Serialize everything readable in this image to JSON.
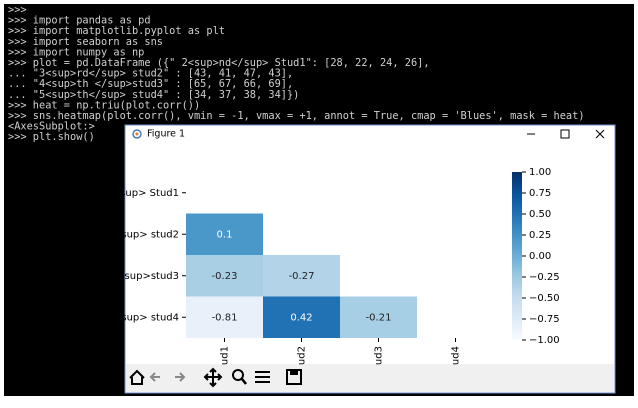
{
  "terminal": {
    "lines": [
      ">>>",
      ">>> import pandas as pd",
      ">>> import matplotlib.pyplot as plt",
      ">>> import seaborn as sns",
      ">>> import numpy as np",
      ">>> plot = pd.DataFrame ({\" 2<sup>nd</sup> Stud1\": [28, 22, 24, 26],",
      "... \"3<sup>rd</sup> stud2\" : [43, 41, 47, 43],",
      "... \"4<sup>th </sup>stud3\" : [65, 67, 66, 69],",
      "... \"5<sup>th</sup> stud4\" : [34, 37, 38, 34]})",
      ">>> heat = np.triu(plot.corr())",
      ">>> sns.heatmap(plot.corr(), vmin = -1, vmax = +1, annot = True, cmap = 'Blues', mask = heat)",
      "<AxesSubplot:>",
      ">>> plt.show()"
    ]
  },
  "window": {
    "title": "Figure 1"
  },
  "chart_data": {
    "type": "heatmap",
    "rows": [
      "sup> Stud1",
      "sup> stud2",
      "sup>stud3",
      "sup> stud4"
    ],
    "columns": [
      "ud1",
      "ud2",
      "ud3",
      "ud4"
    ],
    "values": [
      [
        null,
        null,
        null,
        null
      ],
      [
        0.1,
        null,
        null,
        null
      ],
      [
        -0.23,
        -0.27,
        null,
        null
      ],
      [
        -0.81,
        0.42,
        -0.21,
        null
      ]
    ],
    "colors": [
      [
        null,
        null,
        null,
        null
      ],
      [
        "#4a98c9",
        null,
        null,
        null
      ],
      [
        "#a9cfe5",
        "#b3d3e8",
        null,
        null
      ],
      [
        "#e8f1fa",
        "#2171b5",
        "#a6cee4",
        null
      ]
    ],
    "colorbar": {
      "lim": [
        -1,
        1
      ],
      "ticks": [
        {
          "value": 1,
          "label": "1.00"
        },
        {
          "value": 0.75,
          "label": "0.75"
        },
        {
          "value": 0.5,
          "label": "0.50"
        },
        {
          "value": 0.25,
          "label": "0.25"
        },
        {
          "value": 0,
          "label": "0.00"
        },
        {
          "value": -0.25,
          "label": "−0.25"
        },
        {
          "value": -0.5,
          "label": "−0.50"
        },
        {
          "value": -0.75,
          "label": "−0.75"
        },
        {
          "value": -1,
          "label": "−1.00"
        }
      ],
      "colors": [
        "#f7fbff",
        "#deebf7",
        "#c6dbef",
        "#9ecae1",
        "#6baed6",
        "#4292c6",
        "#2171b5",
        "#08519c",
        "#08306b"
      ]
    }
  }
}
